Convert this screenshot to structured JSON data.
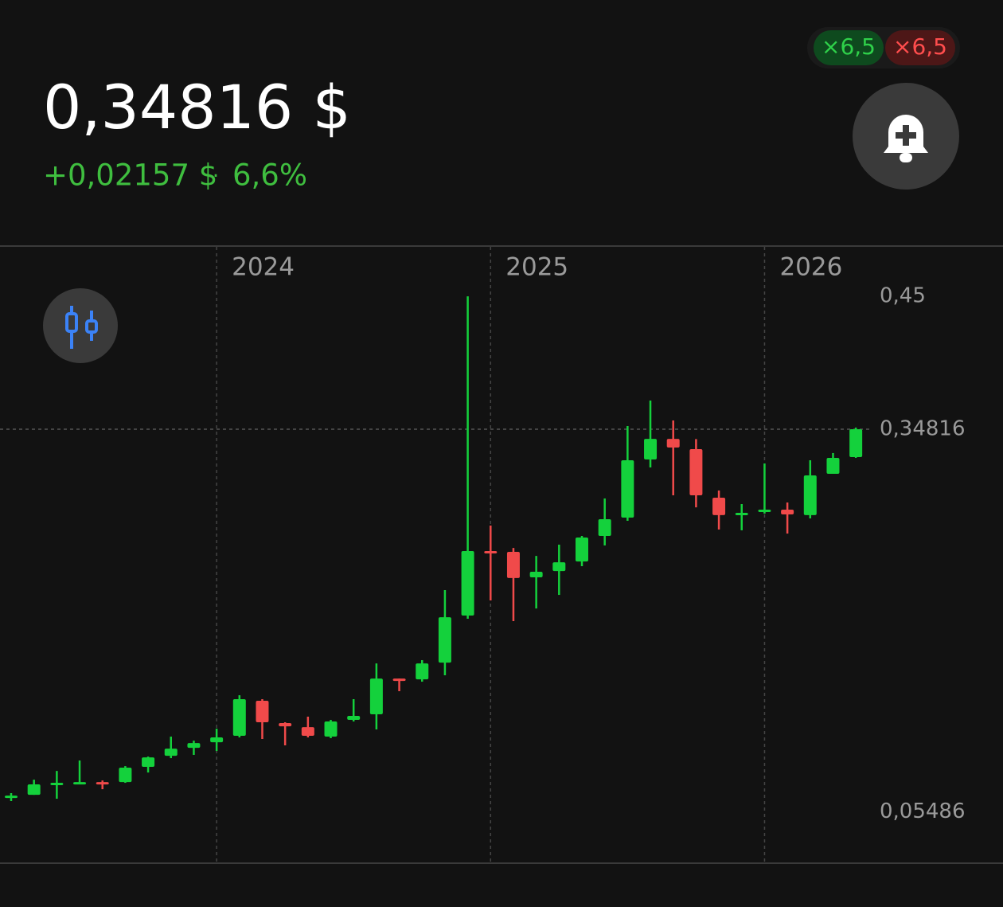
{
  "header": {
    "price": "0,34816 $",
    "change": "+0,02157 $",
    "separator": "·",
    "change_pct": "6,6%",
    "leverage_long": "×6,5",
    "leverage_short": "×6,5"
  },
  "chart_data": {
    "type": "candlestick",
    "categories": [
      null,
      null,
      null,
      null,
      null,
      null,
      null,
      null,
      null,
      "2024",
      null,
      null,
      null,
      null,
      null,
      null,
      null,
      null,
      null,
      null,
      null,
      "2025",
      null,
      null,
      null,
      null,
      null,
      null,
      null,
      null,
      null,
      null,
      null,
      "2026",
      null,
      null,
      null,
      null
    ],
    "open": [
      0.0662,
      0.068,
      0.076,
      0.0766,
      0.0778,
      0.0778,
      0.0894,
      0.0979,
      0.104,
      0.1083,
      0.1132,
      0.1401,
      0.123,
      0.1199,
      0.1126,
      0.1254,
      0.1297,
      0.1571,
      0.1565,
      0.1693,
      0.2054,
      0.2548,
      0.2542,
      0.2347,
      0.2395,
      0.2468,
      0.2664,
      0.2804,
      0.325,
      0.3408,
      0.3329,
      0.2957,
      0.2823,
      0.2853,
      0.2865,
      0.2823,
      0.314,
      0.3268
    ],
    "high": [
      0.0693,
      0.0796,
      0.0863,
      0.0943,
      0.079,
      0.09,
      0.0973,
      0.1126,
      0.1095,
      0.1187,
      0.1443,
      0.1413,
      0.1236,
      0.1279,
      0.1254,
      0.1413,
      0.1687,
      0.1571,
      0.1712,
      0.2249,
      0.45,
      0.2743,
      0.2572,
      0.2511,
      0.2597,
      0.2664,
      0.2951,
      0.3506,
      0.3701,
      0.3549,
      0.3406,
      0.3012,
      0.2908,
      0.3219,
      0.292,
      0.3244,
      0.3299,
      0.3494
    ],
    "low": [
      0.0632,
      0.068,
      0.065,
      0.0766,
      0.0723,
      0.0772,
      0.0851,
      0.0961,
      0.0986,
      0.1016,
      0.112,
      0.1108,
      0.1059,
      0.112,
      0.1114,
      0.1242,
      0.1181,
      0.1474,
      0.1547,
      0.1596,
      0.2029,
      0.217,
      0.2011,
      0.2108,
      0.2212,
      0.2432,
      0.2591,
      0.278,
      0.3189,
      0.2975,
      0.2883,
      0.2713,
      0.2707,
      0.2835,
      0.2682,
      0.2798,
      0.314,
      0.3262
    ],
    "close": [
      0.0674,
      0.076,
      0.0772,
      0.0778,
      0.0766,
      0.0888,
      0.0967,
      0.1034,
      0.1077,
      0.112,
      0.1413,
      0.1236,
      0.1205,
      0.1132,
      0.1242,
      0.1285,
      0.1571,
      0.1559,
      0.1687,
      0.2041,
      0.2548,
      0.2536,
      0.2341,
      0.2389,
      0.2462,
      0.2652,
      0.2792,
      0.3244,
      0.3408,
      0.3341,
      0.2975,
      0.2823,
      0.2841,
      0.2865,
      0.2829,
      0.3128,
      0.3262,
      0.34816
    ],
    "up_color": "#14d13c",
    "down_color": "#f04a4a",
    "ylim": [
      0.0156,
      0.4879
    ],
    "yticks": [
      {
        "value": 0.45,
        "label": "0,45"
      },
      {
        "value": 0.34816,
        "label": "0,34816"
      },
      {
        "value": 0.05486,
        "label": "0,05486"
      }
    ]
  }
}
